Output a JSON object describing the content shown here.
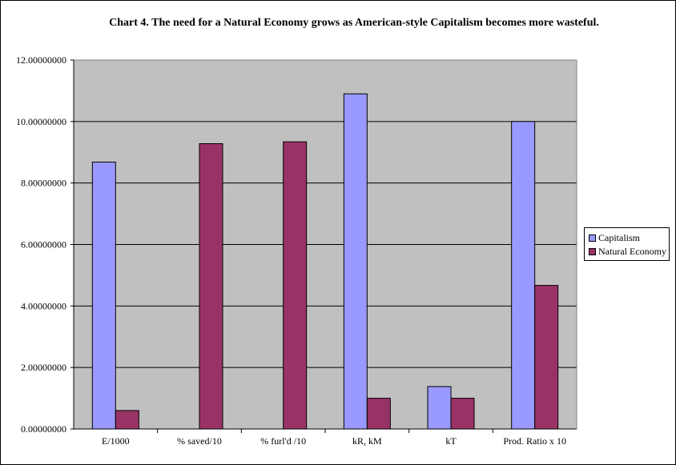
{
  "chart_data": {
    "type": "bar",
    "title": "Chart 4.  The need for a  Natural Economy grows as American-style Capitalism becomes more wasteful.",
    "categories": [
      "E/1000",
      "% saved/10",
      "% furl'd /10",
      "kR, kM",
      "kT",
      "Prod. Ratio x 10"
    ],
    "series": [
      {
        "name": "Capitalism",
        "color": "#9999ff",
        "values": [
          8.68,
          null,
          null,
          10.9,
          1.38,
          10.0
        ]
      },
      {
        "name": "Natural Economy",
        "color": "#993366",
        "values": [
          0.6,
          9.28,
          9.34,
          1.0,
          1.0,
          4.67
        ]
      }
    ],
    "ylim": [
      0,
      12
    ],
    "yticks": [
      "0.00000000",
      "2.00000000",
      "4.00000000",
      "6.00000000",
      "8.00000000",
      "10.00000000",
      "12.00000000"
    ],
    "ytick_values": [
      0,
      2,
      4,
      6,
      8,
      10,
      12
    ],
    "grid": true,
    "plot_background": "#c0c0c0",
    "legend_position": "right",
    "xlabel": "",
    "ylabel": ""
  }
}
